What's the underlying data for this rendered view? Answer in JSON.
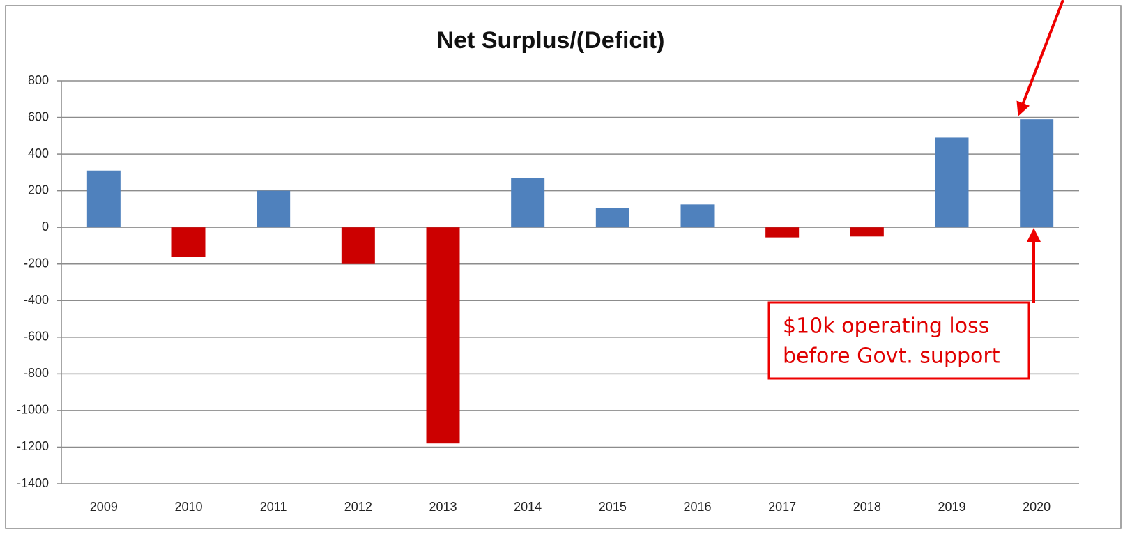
{
  "chart_data": {
    "type": "bar",
    "title": "Net Surplus/(Deficit)",
    "categories": [
      "2009",
      "2010",
      "2011",
      "2012",
      "2013",
      "2014",
      "2015",
      "2016",
      "2017",
      "2018",
      "2019",
      "2020"
    ],
    "values": [
      310,
      -160,
      200,
      -200,
      -1180,
      270,
      105,
      125,
      -55,
      -50,
      490,
      590
    ],
    "colors": [
      "#4f81bd",
      "#cc0000",
      "#4f81bd",
      "#cc0000",
      "#cc0000",
      "#4f81bd",
      "#4f81bd",
      "#4f81bd",
      "#cc0000",
      "#cc0000",
      "#4f81bd",
      "#4f81bd"
    ],
    "ylim": [
      -1400,
      800
    ],
    "yticks": [
      -1400,
      -1200,
      -1000,
      -800,
      -600,
      -400,
      -200,
      0,
      200,
      400,
      600,
      800
    ],
    "grid": true,
    "annotation": [
      "$10k operating loss",
      "before Govt. support"
    ]
  }
}
